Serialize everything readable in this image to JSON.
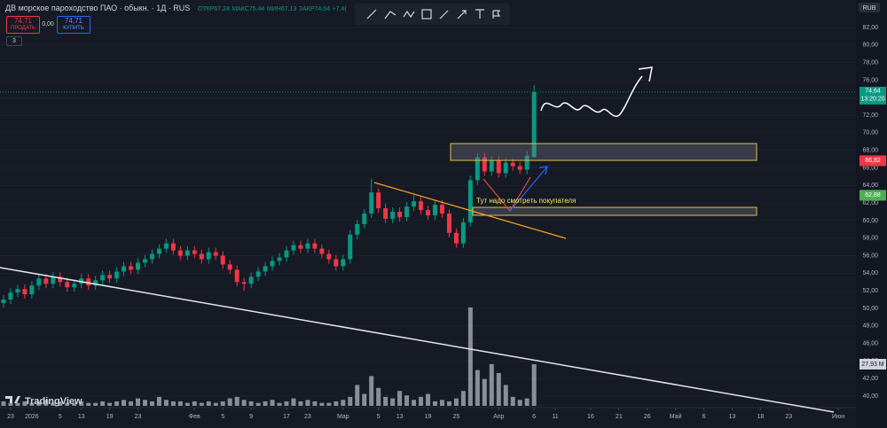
{
  "chart_data": {
    "type": "candlestick",
    "title": "ДВ морское пароходство ПАО · обыкн. · 1Д · RUS",
    "header_stats": [
      "ОТКР67,24",
      "МАКС75,44",
      "МИН67,13",
      "ЗАКР74,64",
      "+7,4("
    ],
    "sell_price": "74,71",
    "sell_label": "ПРОДАТЬ",
    "spread": "0,00",
    "buy_price": "74,71",
    "buy_label": "КУПИТЬ",
    "indicators_count": "3",
    "currency": "RUB",
    "annotation": "Тут надо смотреть покупателя",
    "logo": "TradingView",
    "last_price_tag": {
      "value": 74.64,
      "label": "74,64"
    },
    "countdown": "13:20:20",
    "ma_tags": [
      {
        "value": 66.82,
        "label": "66,82",
        "color": "#f23645"
      },
      {
        "value": 62.88,
        "label": "62,88",
        "color": "#4caf50"
      }
    ],
    "volume_tag": {
      "value": 27.93,
      "label": "27,93 M"
    },
    "up_color": "#089981",
    "down_color": "#f23645",
    "volume_color": "#b2b5be",
    "ylim": [
      38.69,
      85.13
    ],
    "yticks": [
      {
        "value": 40,
        "label": "40,00"
      },
      {
        "value": 42,
        "label": "42,00"
      },
      {
        "value": 44,
        "label": "44,00"
      },
      {
        "value": 46,
        "label": "46,00"
      },
      {
        "value": 48,
        "label": "48,00"
      },
      {
        "value": 50,
        "label": "50,00"
      },
      {
        "value": 52,
        "label": "52,00"
      },
      {
        "value": 54,
        "label": "54,00"
      },
      {
        "value": 56,
        "label": "56,00"
      },
      {
        "value": 58,
        "label": "58,00"
      },
      {
        "value": 60,
        "label": "60,00"
      },
      {
        "value": 62,
        "label": "62,00"
      },
      {
        "value": 64,
        "label": "64,00"
      },
      {
        "value": 66,
        "label": "66,00"
      },
      {
        "value": 68,
        "label": "68,00"
      },
      {
        "value": 70,
        "label": "70,00"
      },
      {
        "value": 72,
        "label": "72,00"
      },
      {
        "value": 74,
        "label": "74,00"
      },
      {
        "value": 76,
        "label": "76,00"
      },
      {
        "value": 78,
        "label": "78,00"
      },
      {
        "value": 80,
        "label": "80,00"
      },
      {
        "value": 82,
        "label": "82,00"
      }
    ],
    "categories": [
      null,
      "23",
      null,
      null,
      "2026",
      null,
      null,
      null,
      "5",
      null,
      null,
      "13",
      null,
      null,
      null,
      "19",
      null,
      null,
      null,
      "23",
      null,
      null,
      null,
      null,
      null,
      null,
      null,
      "Фев",
      null,
      null,
      null,
      "5",
      null,
      null,
      null,
      "9",
      null,
      null,
      null,
      null,
      "17",
      null,
      null,
      "23",
      null,
      null,
      null,
      null,
      "Мар",
      null,
      null,
      null,
      null,
      "5",
      null,
      null,
      "13",
      null,
      null,
      null,
      "19",
      null,
      null,
      null,
      "25",
      null,
      null,
      null,
      null,
      null,
      "Апр",
      null,
      null,
      null,
      null,
      "6",
      null,
      null,
      "11",
      null,
      null,
      null,
      null,
      "16",
      null,
      null,
      null,
      "21",
      null,
      null,
      null,
      "26",
      null,
      null,
      null,
      "Май",
      null,
      null,
      null,
      "6",
      null,
      null,
      null,
      "13",
      null,
      null,
      null,
      "18",
      null,
      null,
      null,
      "23",
      null,
      null,
      null,
      null,
      null,
      null,
      "Июн",
      null,
      null
    ],
    "open": [
      50.6,
      51.0,
      51.8,
      52.2,
      51.6,
      52.6,
      53.4,
      52.8,
      53.6,
      53.0,
      52.4,
      52.8,
      53.4,
      52.6,
      53.2,
      53.8,
      53.4,
      54.2,
      54.8,
      54.4,
      55.2,
      55.6,
      56.2,
      56.8,
      57.4,
      56.6,
      56.0,
      56.6,
      56.2,
      55.6,
      56.4,
      56.0,
      55.0,
      54.4,
      53.0,
      52.8,
      53.6,
      54.2,
      54.8,
      55.4,
      55.8,
      56.6,
      57.2,
      56.8,
      57.4,
      56.8,
      56.2,
      55.6,
      54.8,
      55.6,
      58.4,
      59.6,
      60.8,
      63.2,
      61.4,
      60.2,
      61.0,
      60.4,
      61.6,
      62.2,
      61.2,
      60.6,
      61.8,
      60.8,
      58.6,
      57.4,
      59.8,
      64.6,
      67.2,
      65.6,
      66.8,
      65.4,
      66.6,
      66.2,
      65.8,
      67.24,
      null,
      null,
      null,
      null,
      null,
      null,
      null,
      null,
      null,
      null,
      null,
      null,
      null,
      null,
      null,
      null,
      null,
      null,
      null,
      null,
      null,
      null,
      null,
      null,
      null,
      null,
      null,
      null,
      null,
      null,
      null,
      null,
      null,
      null,
      null,
      null,
      null,
      null,
      null,
      null,
      null,
      null,
      null,
      null,
      null
    ],
    "high": [
      51.5,
      52.3,
      52.7,
      52.7,
      53.1,
      53.9,
      53.9,
      54.1,
      54.1,
      53.5,
      53.3,
      53.9,
      53.9,
      53.7,
      54.3,
      54.3,
      54.7,
      55.3,
      55.3,
      55.7,
      56.1,
      56.7,
      57.3,
      57.9,
      57.9,
      57.1,
      57.1,
      57.1,
      56.7,
      56.9,
      56.9,
      56.5,
      55.5,
      54.9,
      53.5,
      54.1,
      54.7,
      55.3,
      55.9,
      56.3,
      57.1,
      57.7,
      57.7,
      57.9,
      57.9,
      57.3,
      56.7,
      56.1,
      56.1,
      58.9,
      60.1,
      61.3,
      64.8,
      63.7,
      61.9,
      61.5,
      61.5,
      62.1,
      62.9,
      62.7,
      61.7,
      62.3,
      62.3,
      61.3,
      59.1,
      60.3,
      65.1,
      67.7,
      67.7,
      67.3,
      67.3,
      67.1,
      67.1,
      66.7,
      67.9,
      75.44,
      null,
      null,
      null,
      null,
      null,
      null,
      null,
      null,
      null,
      null,
      null,
      null,
      null,
      null,
      null,
      null,
      null,
      null,
      null,
      null,
      null,
      null,
      null,
      null,
      null,
      null,
      null,
      null,
      null,
      null,
      null,
      null,
      null,
      null,
      null,
      null,
      null,
      null,
      null,
      null,
      null,
      null,
      null,
      null,
      null
    ],
    "low": [
      50.1,
      50.5,
      51.3,
      51.1,
      51.1,
      52.1,
      52.3,
      52.3,
      52.5,
      51.9,
      51.9,
      52.3,
      52.1,
      52.1,
      52.7,
      52.9,
      52.9,
      53.7,
      53.9,
      53.9,
      54.7,
      55.1,
      55.7,
      56.3,
      56.1,
      55.5,
      55.5,
      55.7,
      55.1,
      55.1,
      55.5,
      54.5,
      53.9,
      52.5,
      52.0,
      52.3,
      53.1,
      53.7,
      54.3,
      54.9,
      55.3,
      56.1,
      56.3,
      56.3,
      56.3,
      55.7,
      55.1,
      54.3,
      54.3,
      55.1,
      57.9,
      59.1,
      60.3,
      60.9,
      59.7,
      59.7,
      59.9,
      59.9,
      61.1,
      60.7,
      60.1,
      60.1,
      60.3,
      58.1,
      56.9,
      56.9,
      59.3,
      64.1,
      65.1,
      65.1,
      64.9,
      64.9,
      65.7,
      65.3,
      65.3,
      67.13,
      null,
      null,
      null,
      null,
      null,
      null,
      null,
      null,
      null,
      null,
      null,
      null,
      null,
      null,
      null,
      null,
      null,
      null,
      null,
      null,
      null,
      null,
      null,
      null,
      null,
      null,
      null,
      null,
      null,
      null,
      null,
      null,
      null,
      null,
      null,
      null,
      null,
      null,
      null,
      null,
      null,
      null,
      null,
      null,
      null
    ],
    "close": [
      51.0,
      51.8,
      52.2,
      51.6,
      52.6,
      53.4,
      52.8,
      53.6,
      53.0,
      52.4,
      52.8,
      53.4,
      52.6,
      53.2,
      53.8,
      53.4,
      54.2,
      54.8,
      54.4,
      55.2,
      55.6,
      56.2,
      56.8,
      57.4,
      56.6,
      56.0,
      56.6,
      56.2,
      55.6,
      56.4,
      56.0,
      55.0,
      54.4,
      53.0,
      52.8,
      53.6,
      54.2,
      54.8,
      55.4,
      55.8,
      56.6,
      57.2,
      56.8,
      57.4,
      56.8,
      56.2,
      55.6,
      54.8,
      55.6,
      58.4,
      59.6,
      60.8,
      63.2,
      61.4,
      60.2,
      61.0,
      60.4,
      61.6,
      62.2,
      61.2,
      60.6,
      61.8,
      60.8,
      58.6,
      57.4,
      59.8,
      64.6,
      67.2,
      65.6,
      66.8,
      65.4,
      66.6,
      66.2,
      65.8,
      67.4,
      74.64,
      null,
      null,
      null,
      null,
      null,
      null,
      null,
      null,
      null,
      null,
      null,
      null,
      null,
      null,
      null,
      null,
      null,
      null,
      null,
      null,
      null,
      null,
      null,
      null,
      null,
      null,
      null,
      null,
      null,
      null,
      null,
      null,
      null,
      null,
      null,
      null,
      null,
      null,
      null,
      null,
      null,
      null,
      null,
      null,
      null
    ],
    "volume": [
      3,
      2,
      2,
      3,
      2,
      3,
      4,
      2,
      3,
      2,
      2,
      3,
      2,
      2,
      3,
      2,
      3,
      4,
      3,
      5,
      4,
      3,
      6,
      4,
      3,
      3,
      2,
      3,
      2,
      3,
      2,
      3,
      5,
      6,
      4,
      3,
      2,
      3,
      4,
      2,
      3,
      5,
      3,
      4,
      3,
      2,
      2,
      3,
      4,
      6,
      14,
      8,
      20,
      12,
      6,
      5,
      10,
      7,
      4,
      6,
      8,
      3,
      4,
      3,
      5,
      10,
      66,
      24,
      18,
      28,
      22,
      14,
      6,
      4,
      5,
      27.93,
      null,
      null,
      null,
      null,
      null,
      null,
      null,
      null,
      null,
      null,
      null,
      null,
      null,
      null,
      null,
      null,
      null,
      null,
      null,
      null,
      null,
      null,
      null,
      null,
      null,
      null,
      null,
      null,
      null,
      null,
      null,
      null,
      null,
      null,
      null,
      null,
      null,
      null,
      null,
      null,
      null,
      null,
      null,
      null,
      null
    ]
  }
}
